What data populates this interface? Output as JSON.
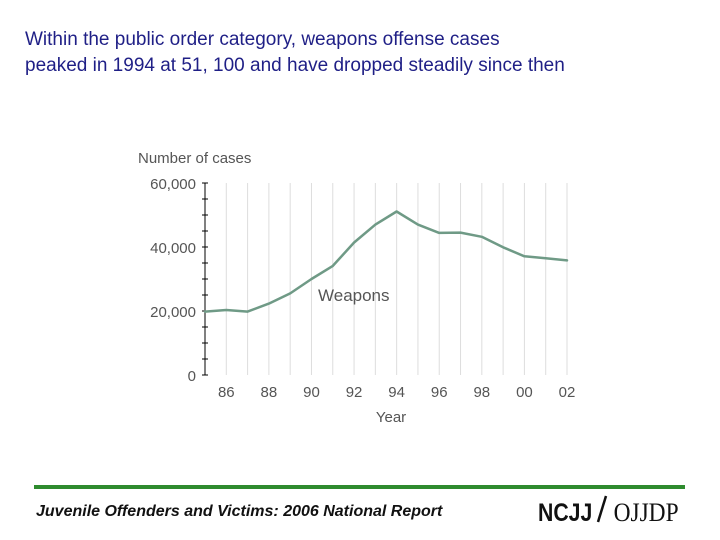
{
  "headline": {
    "line1": "Within the public order category, weapons offense cases",
    "line2": "peaked in 1994 at 51, 100 and have dropped steadily since then"
  },
  "footer": {
    "citation": "Juvenile Offenders and Victims: 2006 National Report",
    "logo_text": "NCJJ/OJJDP"
  },
  "colors": {
    "headline": "#1f1f86",
    "series_line": "#6f9a86",
    "footer_rule": "#2e8b2e",
    "axis_text": "#555555"
  },
  "chart_data": {
    "type": "line",
    "title": "",
    "ylabel": "Number of cases",
    "xlabel": "Year",
    "ylim": [
      0,
      60000
    ],
    "xlim": [
      1985,
      2002
    ],
    "y_ticks": [
      {
        "value": 0,
        "label": "0"
      },
      {
        "value": 20000,
        "label": "20,000"
      },
      {
        "value": 40000,
        "label": "40,000"
      },
      {
        "value": 60000,
        "label": "60,000"
      }
    ],
    "x_ticks": [
      {
        "value": 1986,
        "label": "86"
      },
      {
        "value": 1988,
        "label": "88"
      },
      {
        "value": 1990,
        "label": "90"
      },
      {
        "value": 1992,
        "label": "92"
      },
      {
        "value": 1994,
        "label": "94"
      },
      {
        "value": 1996,
        "label": "96"
      },
      {
        "value": 1998,
        "label": "98"
      },
      {
        "value": 2000,
        "label": "00"
      },
      {
        "value": 2002,
        "label": "02"
      }
    ],
    "grid": true,
    "series": [
      {
        "name": "Weapons",
        "x": [
          1985,
          1986,
          1987,
          1988,
          1989,
          1990,
          1991,
          1992,
          1993,
          1994,
          1995,
          1996,
          1997,
          1998,
          1999,
          2000,
          2001,
          2002
        ],
        "y": [
          19800,
          20300,
          19800,
          22300,
          25500,
          30000,
          34100,
          41400,
          47000,
          51100,
          47000,
          44400,
          44500,
          43200,
          39900,
          37100,
          36500,
          35800
        ]
      }
    ]
  }
}
